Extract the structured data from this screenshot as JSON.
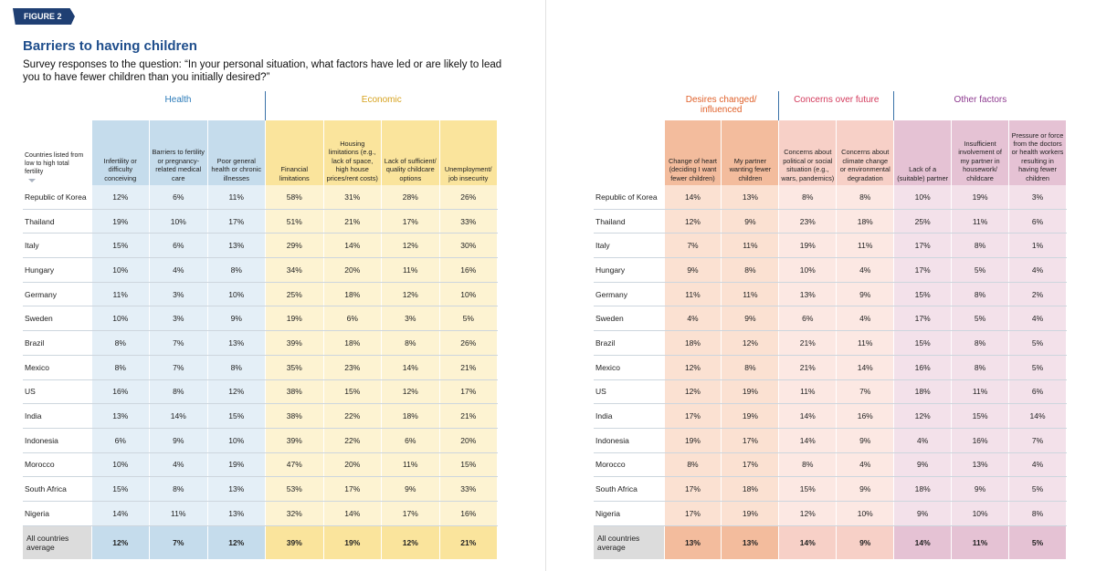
{
  "figure_label": "FIGURE 2",
  "title": "Barriers to having children",
  "subtitle": "Survey responses to the question: “In your personal situation, what factors have led or are likely to lead you to have fewer children than you initially desired?”",
  "tables": [
    {
      "row_header_label": "Countries listed from low to high total fertility",
      "groups": [
        {
          "name": "Health",
          "title_color": "#2b7bb9",
          "header_color": "#c5dcec",
          "cell_color": "#e4eff7",
          "avg_color": "#c5dcec",
          "columns": [
            "Infertility or difficulty conceiving",
            "Barriers to fertility or pregnancy-related medical care",
            "Poor general health or chronic illnesses"
          ]
        },
        {
          "name": "Economic",
          "title_color": "#d6a21e",
          "header_color": "#fae49c",
          "cell_color": "#fdf3d2",
          "avg_color": "#fae49c",
          "columns": [
            "Financial limitations",
            "Housing limitations (e.g., lack of space, high house prices/rent costs)",
            "Lack of sufficient/ quality childcare options",
            "Unemployment/ job insecurity"
          ]
        }
      ],
      "rows": [
        {
          "country": "Republic of Korea",
          "values": [
            "12%",
            "6%",
            "11%",
            "58%",
            "31%",
            "28%",
            "26%"
          ]
        },
        {
          "country": "Thailand",
          "values": [
            "19%",
            "10%",
            "17%",
            "51%",
            "21%",
            "17%",
            "33%"
          ]
        },
        {
          "country": "Italy",
          "values": [
            "15%",
            "6%",
            "13%",
            "29%",
            "14%",
            "12%",
            "30%"
          ]
        },
        {
          "country": "Hungary",
          "values": [
            "10%",
            "4%",
            "8%",
            "34%",
            "20%",
            "11%",
            "16%"
          ]
        },
        {
          "country": "Germany",
          "values": [
            "11%",
            "3%",
            "10%",
            "25%",
            "18%",
            "12%",
            "10%"
          ]
        },
        {
          "country": "Sweden",
          "values": [
            "10%",
            "3%",
            "9%",
            "19%",
            "6%",
            "3%",
            "5%"
          ]
        },
        {
          "country": "Brazil",
          "values": [
            "8%",
            "7%",
            "13%",
            "39%",
            "18%",
            "8%",
            "26%"
          ]
        },
        {
          "country": "Mexico",
          "values": [
            "8%",
            "7%",
            "8%",
            "35%",
            "23%",
            "14%",
            "21%"
          ]
        },
        {
          "country": "US",
          "values": [
            "16%",
            "8%",
            "12%",
            "38%",
            "15%",
            "12%",
            "17%"
          ]
        },
        {
          "country": "India",
          "values": [
            "13%",
            "14%",
            "15%",
            "38%",
            "22%",
            "18%",
            "21%"
          ]
        },
        {
          "country": "Indonesia",
          "values": [
            "6%",
            "9%",
            "10%",
            "39%",
            "22%",
            "6%",
            "20%"
          ]
        },
        {
          "country": "Morocco",
          "values": [
            "10%",
            "4%",
            "19%",
            "47%",
            "20%",
            "11%",
            "15%"
          ]
        },
        {
          "country": "South Africa",
          "values": [
            "15%",
            "8%",
            "13%",
            "53%",
            "17%",
            "9%",
            "33%"
          ]
        },
        {
          "country": "Nigeria",
          "values": [
            "14%",
            "11%",
            "13%",
            "32%",
            "14%",
            "17%",
            "16%"
          ]
        }
      ],
      "average": {
        "country": "All countries average",
        "values": [
          "12%",
          "7%",
          "12%",
          "39%",
          "19%",
          "12%",
          "21%"
        ]
      }
    },
    {
      "groups": [
        {
          "name": "Desires changed/ influenced",
          "title_color": "#e0622c",
          "header_color": "#f3bc9d",
          "cell_color": "#fbe1d2",
          "avg_color": "#f3bc9d",
          "columns": [
            "Change of heart (deciding I want fewer children)",
            "My partner wanting fewer children"
          ]
        },
        {
          "name": "Concerns over future",
          "title_color": "#d33a5c",
          "header_color": "#f7d0c7",
          "cell_color": "#fce8e3",
          "avg_color": "#f7d0c7",
          "columns": [
            "Concerns about political or social situation (e.g., wars, pandemics)",
            "Concerns about climate change or environmental degradation"
          ]
        },
        {
          "name": "Other factors",
          "title_color": "#8e3b90",
          "header_color": "#e5c2d4",
          "cell_color": "#f3e1ea",
          "avg_color": "#e5c2d4",
          "columns": [
            "Lack of a (suitable) partner",
            "Insufficient involvement of my partner in housework/ childcare",
            "Pressure or force from the doctors or health workers resulting in having fewer children"
          ]
        }
      ],
      "rows": [
        {
          "country": "Republic of Korea",
          "values": [
            "14%",
            "13%",
            "8%",
            "8%",
            "10%",
            "19%",
            "3%"
          ]
        },
        {
          "country": "Thailand",
          "values": [
            "12%",
            "9%",
            "23%",
            "18%",
            "25%",
            "11%",
            "6%"
          ]
        },
        {
          "country": "Italy",
          "values": [
            "7%",
            "11%",
            "19%",
            "11%",
            "17%",
            "8%",
            "1%"
          ]
        },
        {
          "country": "Hungary",
          "values": [
            "9%",
            "8%",
            "10%",
            "4%",
            "17%",
            "5%",
            "4%"
          ]
        },
        {
          "country": "Germany",
          "values": [
            "11%",
            "11%",
            "13%",
            "9%",
            "15%",
            "8%",
            "2%"
          ]
        },
        {
          "country": "Sweden",
          "values": [
            "4%",
            "9%",
            "6%",
            "4%",
            "17%",
            "5%",
            "4%"
          ]
        },
        {
          "country": "Brazil",
          "values": [
            "18%",
            "12%",
            "21%",
            "11%",
            "15%",
            "8%",
            "5%"
          ]
        },
        {
          "country": "Mexico",
          "values": [
            "12%",
            "8%",
            "21%",
            "14%",
            "16%",
            "8%",
            "5%"
          ]
        },
        {
          "country": "US",
          "values": [
            "12%",
            "19%",
            "11%",
            "7%",
            "18%",
            "11%",
            "6%"
          ]
        },
        {
          "country": "India",
          "values": [
            "17%",
            "19%",
            "14%",
            "16%",
            "12%",
            "15%",
            "14%"
          ]
        },
        {
          "country": "Indonesia",
          "values": [
            "19%",
            "17%",
            "14%",
            "9%",
            "4%",
            "16%",
            "7%"
          ]
        },
        {
          "country": "Morocco",
          "values": [
            "8%",
            "17%",
            "8%",
            "4%",
            "9%",
            "13%",
            "4%"
          ]
        },
        {
          "country": "South Africa",
          "values": [
            "17%",
            "18%",
            "15%",
            "9%",
            "18%",
            "9%",
            "5%"
          ]
        },
        {
          "country": "Nigeria",
          "values": [
            "17%",
            "19%",
            "12%",
            "10%",
            "9%",
            "10%",
            "8%"
          ]
        }
      ],
      "average": {
        "country": "All countries average",
        "values": [
          "13%",
          "13%",
          "14%",
          "9%",
          "14%",
          "11%",
          "5%"
        ]
      }
    }
  ]
}
